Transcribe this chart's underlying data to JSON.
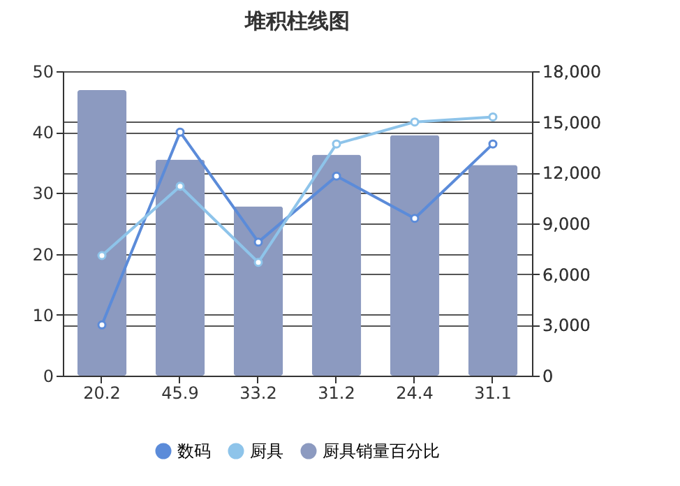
{
  "chart_data": {
    "type": "bar",
    "title": "堆积柱线图",
    "categories": [
      "20.2",
      "45.9",
      "33.2",
      "31.2",
      "24.4",
      "31.1"
    ],
    "series": [
      {
        "name": "数码",
        "type": "line",
        "axis": "y2",
        "color": "#5b8bd9",
        "values": [
          3000,
          14400,
          7900,
          11800,
          9300,
          13700
        ]
      },
      {
        "name": "厨具",
        "type": "line",
        "axis": "y2",
        "color": "#8ec4ea",
        "values": [
          7100,
          11200,
          6700,
          13700,
          15000,
          15300
        ]
      },
      {
        "name": "厨具销量百分比",
        "color": "#8c9ac0",
        "values": [
          46.9,
          35.5,
          27.8,
          36.3,
          39.5,
          34.6
        ]
      }
    ],
    "ylim": [
      0,
      50
    ],
    "yticks": [
      0,
      10,
      20,
      30,
      40,
      50
    ],
    "y2lim": [
      0,
      18000
    ],
    "y2ticks": [
      0,
      {
        "value": 3000,
        "label": "3,000"
      },
      {
        "value": 6000,
        "label": "6,000"
      },
      {
        "value": 9000,
        "label": "9,000"
      },
      {
        "value": 12000,
        "label": "12,000"
      },
      {
        "value": 15000,
        "label": "15,000"
      },
      {
        "value": 18000,
        "label": "18,000"
      }
    ],
    "grid": true,
    "legend": "bottom",
    "marker": "circle"
  }
}
